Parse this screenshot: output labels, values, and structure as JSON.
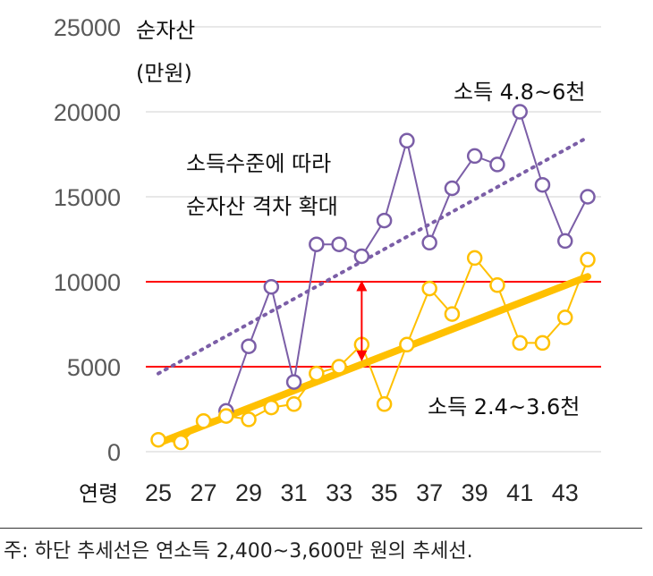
{
  "chart_data": {
    "type": "line",
    "ylabel_line1": "순자산",
    "ylabel_line2": "(만원)",
    "xlabel": "연령",
    "x": [
      25,
      26,
      27,
      28,
      29,
      30,
      31,
      32,
      33,
      34,
      35,
      36,
      37,
      38,
      39,
      40,
      41,
      42,
      43,
      44
    ],
    "x_ticks": [
      "25",
      "27",
      "29",
      "31",
      "33",
      "35",
      "37",
      "39",
      "41",
      "43"
    ],
    "y_ticks": [
      "0",
      "5000",
      "10000",
      "15000",
      "20000",
      "25000"
    ],
    "ylim": [
      0,
      25000
    ],
    "grid": "horizontal",
    "series": [
      {
        "name": "소득 4.8~6천",
        "color": "#7b5ea7",
        "x": [
          28,
          29,
          30,
          31,
          32,
          33,
          34,
          35,
          36,
          37,
          38,
          39,
          40,
          41,
          42,
          43,
          44
        ],
        "values": [
          2400,
          6200,
          9700,
          4100,
          12200,
          12200,
          11500,
          13600,
          18300,
          12300,
          15500,
          17400,
          16900,
          20000,
          15700,
          12400,
          15000
        ]
      },
      {
        "name": "소득 2.4~3.6천",
        "color": "#ffc000",
        "x": [
          25,
          26,
          27,
          28,
          29,
          30,
          31,
          32,
          33,
          34,
          35,
          36,
          37,
          38,
          39,
          40,
          41,
          42,
          43,
          44
        ],
        "values": [
          700,
          550,
          1800,
          2100,
          1900,
          2600,
          2800,
          4600,
          5000,
          6300,
          2800,
          6300,
          9600,
          8100,
          11400,
          9800,
          6400,
          6400,
          7900,
          11300
        ]
      }
    ],
    "trendlines": [
      {
        "series": "소득 4.8~6천",
        "style": "dotted",
        "color": "#7b5ea7",
        "x": [
          25,
          44
        ],
        "values": [
          4600,
          18500
        ]
      },
      {
        "series": "소득 2.4~3.6천",
        "style": "solid-thick",
        "color": "#ffc000",
        "x": [
          25,
          44
        ],
        "values": [
          500,
          10300
        ]
      }
    ],
    "reference_lines": {
      "color": "#ff0000",
      "values": [
        5000,
        10000
      ]
    },
    "gap_arrow": {
      "x": 34,
      "from": 5000,
      "to": 10500,
      "color": "#ff0000"
    },
    "annotations": {
      "high_income": "소득 4.8~6천",
      "low_income": "소득 2.4~3.6천",
      "callout_line1": "소득수준에 따라",
      "callout_line2": "순자산 격차 확대"
    }
  },
  "footnote": "주: 하단 추세선은 연소득 2,400~3,600만 원의 추세선."
}
